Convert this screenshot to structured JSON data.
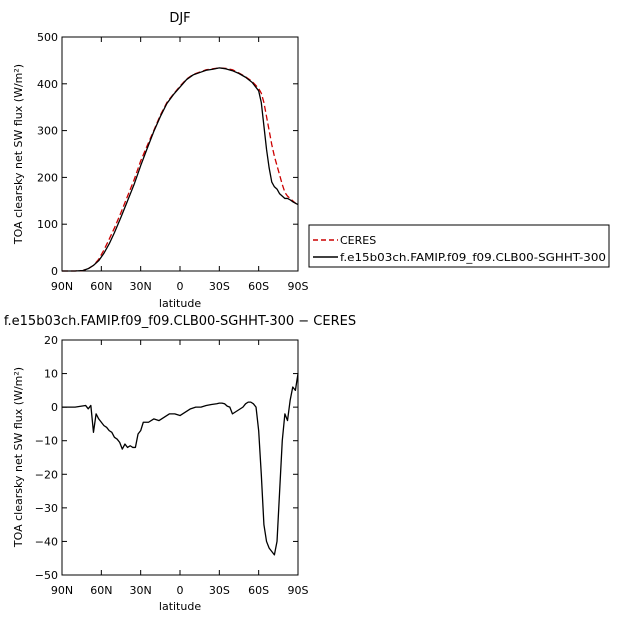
{
  "chart_data": [
    {
      "type": "line",
      "title": "DJF",
      "xlabel": "latitude",
      "ylabel": "TOA clearsky net SW flux (W/m²)",
      "xlim": [
        90,
        -90
      ],
      "ylim": [
        0,
        500
      ],
      "xticks": [
        90,
        60,
        30,
        0,
        -30,
        -60,
        -90
      ],
      "xtick_labels": [
        "90N",
        "60N",
        "30N",
        "0",
        "30S",
        "60S",
        "90S"
      ],
      "yticks": [
        0,
        100,
        200,
        300,
        400,
        500
      ],
      "ytick_labels": [
        "0",
        "100",
        "200",
        "300",
        "400",
        "500"
      ],
      "legend_position": "right",
      "series": [
        {
          "name": "CERES",
          "color": "#cc0000",
          "style": "dashed",
          "x": [
            90,
            80,
            74,
            70,
            66,
            62,
            58,
            54,
            50,
            45,
            40,
            35,
            30,
            25,
            20,
            15,
            10,
            5,
            0,
            -5,
            -10,
            -15,
            -20,
            -25,
            -30,
            -35,
            -40,
            -45,
            -50,
            -55,
            -60,
            -62,
            -64,
            -66,
            -68,
            -70,
            -72,
            -74,
            -76,
            -78,
            -80,
            -82,
            -84,
            -86,
            -88,
            -90
          ],
          "y": [
            0,
            0,
            1,
            5,
            12,
            25,
            45,
            68,
            92,
            125,
            160,
            195,
            235,
            268,
            300,
            333,
            360,
            378,
            395,
            410,
            420,
            425,
            430,
            432,
            434,
            433,
            430,
            423,
            415,
            405,
            390,
            380,
            360,
            330,
            300,
            270,
            245,
            225,
            205,
            185,
            168,
            160,
            155,
            150,
            145,
            140
          ]
        },
        {
          "name": "f.e15b03ch.FAMIP.f09_f09.CLB00-SGHHT-300",
          "color": "#000000",
          "style": "solid",
          "x": [
            90,
            80,
            74,
            70,
            66,
            62,
            58,
            54,
            50,
            45,
            40,
            35,
            30,
            25,
            20,
            15,
            10,
            5,
            0,
            -5,
            -10,
            -15,
            -20,
            -25,
            -30,
            -35,
            -40,
            -45,
            -50,
            -55,
            -60,
            -62,
            -64,
            -66,
            -68,
            -70,
            -72,
            -74,
            -76,
            -78,
            -80,
            -82,
            -84,
            -86,
            -88,
            -90
          ],
          "y": [
            0,
            0,
            1,
            5,
            12,
            22,
            38,
            58,
            82,
            115,
            150,
            185,
            225,
            262,
            298,
            330,
            358,
            377,
            393,
            409,
            419,
            424,
            429,
            431,
            434,
            432,
            428,
            422,
            414,
            403,
            385,
            360,
            310,
            260,
            220,
            190,
            180,
            175,
            165,
            160,
            155,
            155,
            152,
            148,
            145,
            142
          ]
        }
      ]
    },
    {
      "type": "line",
      "title": "f.e15b03ch.FAMIP.f09_f09.CLB00-SGHHT-300 − CERES",
      "xlabel": "latitude",
      "ylabel": "TOA clearsky net SW flux (W/m²)",
      "xlim": [
        90,
        -90
      ],
      "ylim": [
        -50,
        20
      ],
      "xticks": [
        90,
        60,
        30,
        0,
        -30,
        -60,
        -90
      ],
      "xtick_labels": [
        "90N",
        "60N",
        "30N",
        "0",
        "30S",
        "60S",
        "90S"
      ],
      "yticks": [
        -50,
        -40,
        -30,
        -20,
        -10,
        0,
        10,
        20
      ],
      "ytick_labels": [
        "−50",
        "−40",
        "−30",
        "−20",
        "−10",
        "0",
        "10",
        "20"
      ],
      "series": [
        {
          "color": "#000000",
          "style": "solid",
          "x": [
            90,
            80,
            72,
            70,
            68,
            66,
            64,
            62,
            60,
            58,
            56,
            54,
            52,
            50,
            48,
            46,
            44,
            42,
            40,
            38,
            36,
            34,
            32,
            30,
            28,
            26,
            24,
            20,
            16,
            12,
            8,
            4,
            0,
            -4,
            -8,
            -12,
            -16,
            -20,
            -24,
            -28,
            -30,
            -32,
            -34,
            -36,
            -38,
            -40,
            -44,
            -48,
            -50,
            -52,
            -54,
            -56,
            -58,
            -60,
            -62,
            -64,
            -66,
            -68,
            -70,
            -72,
            -74,
            -76,
            -78,
            -80,
            -82,
            -84,
            -86,
            -88,
            -90
          ],
          "y": [
            0,
            0,
            0.5,
            -0.5,
            0.5,
            -7.5,
            -2,
            -3.5,
            -4.5,
            -5.5,
            -6,
            -7,
            -7.5,
            -9,
            -9.5,
            -10.5,
            -12.5,
            -11,
            -12,
            -11.5,
            -12,
            -12,
            -8,
            -7,
            -4.5,
            -4.5,
            -4.5,
            -3.5,
            -4,
            -3,
            -2,
            -2,
            -2.5,
            -1.5,
            -0.5,
            0,
            0,
            0.5,
            0.8,
            1,
            1.2,
            1.2,
            1,
            0.3,
            0,
            -2,
            -1,
            0,
            1,
            1.5,
            1.5,
            1,
            0,
            -7,
            -20,
            -35,
            -40,
            -42,
            -43,
            -44,
            -40,
            -25,
            -10,
            -2,
            -4,
            2,
            6,
            5,
            10
          ]
        }
      ]
    }
  ]
}
